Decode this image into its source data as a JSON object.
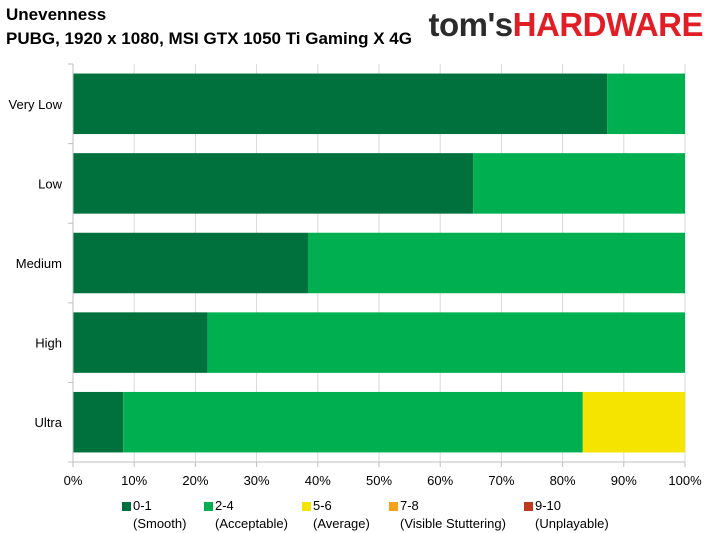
{
  "header": {
    "title": "Unevenness",
    "subtitle": "PUBG, 1920 x 1080, MSI GTX 1050 Ti Gaming X 4G",
    "logo_part1": "tom's",
    "logo_part2": "HARDWARE"
  },
  "colors": {
    "logo_dark": "#2b2b2b",
    "logo_red": "#e01e26",
    "grid": "#d9d9d9"
  },
  "chart_data": {
    "type": "bar",
    "orientation": "horizontal",
    "stacked": true,
    "categories": [
      "Very Low",
      "Low",
      "Medium",
      "High",
      "Ultra"
    ],
    "series": [
      {
        "name": "0-1",
        "description": "(Smooth)",
        "color": "#00703c",
        "values": [
          87.3,
          65.4,
          38.4,
          22.0,
          8.2
        ]
      },
      {
        "name": "2-4",
        "description": "(Acceptable)",
        "color": "#00b050",
        "values": [
          12.7,
          34.6,
          61.6,
          78.0,
          75.1
        ]
      },
      {
        "name": "5-6",
        "description": "(Average)",
        "color": "#f5e400",
        "values": [
          0,
          0,
          0,
          0,
          16.7
        ]
      },
      {
        "name": "7-8",
        "description": "(Visible Stuttering)",
        "color": "#f7a11a",
        "values": [
          0,
          0,
          0,
          0,
          0
        ]
      },
      {
        "name": "9-10",
        "description": "(Unplayable)",
        "color": "#c0381d",
        "values": [
          0,
          0,
          0,
          0,
          0
        ]
      }
    ],
    "xlim": [
      0,
      100
    ],
    "xticks": [
      "0%",
      "10%",
      "20%",
      "30%",
      "40%",
      "50%",
      "60%",
      "70%",
      "80%",
      "90%",
      "100%"
    ],
    "grid": true,
    "legend_position": "bottom"
  }
}
